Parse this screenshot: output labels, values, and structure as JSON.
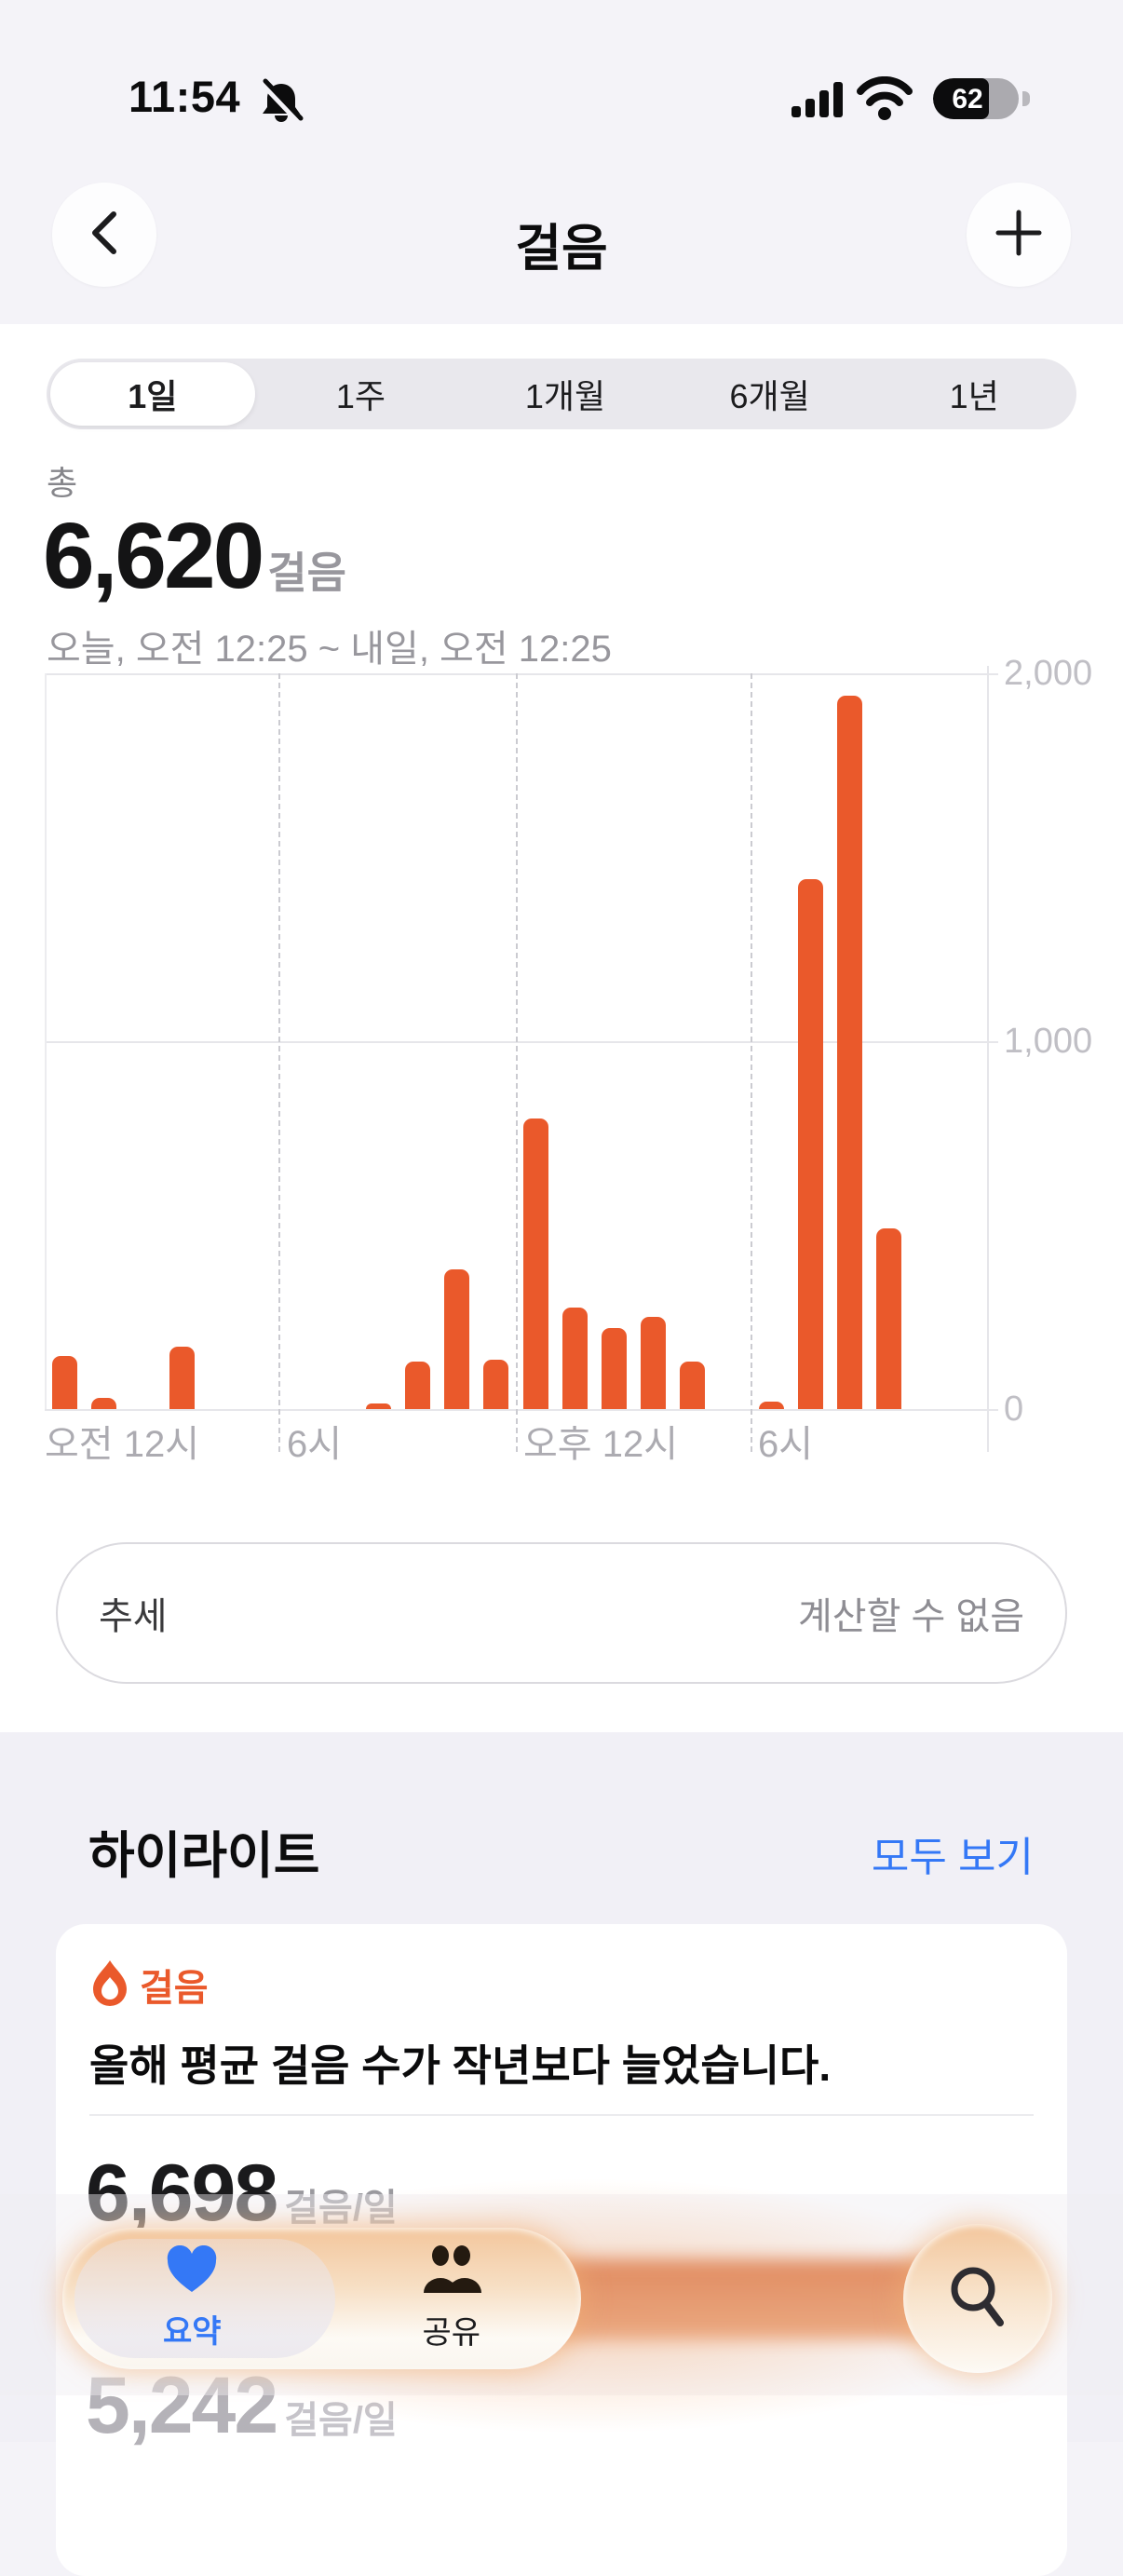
{
  "status_bar": {
    "time": "11:54",
    "battery_percent": "62",
    "icons": [
      "bell-muted-icon",
      "signal-icon",
      "wifi-icon",
      "battery-icon"
    ]
  },
  "header": {
    "title": "걸음"
  },
  "segmented": {
    "options": [
      "1일",
      "1주",
      "1개월",
      "6개월",
      "1년"
    ],
    "selected": "1일"
  },
  "summary": {
    "label": "총",
    "value": "6,620",
    "unit": "걸음",
    "range": "오늘, 오전 12:25 ~ 내일, 오전 12:25"
  },
  "chart_data": {
    "type": "bar",
    "title": "걸음 (하루, 시간별)",
    "x": [
      0,
      1,
      2,
      3,
      4,
      5,
      6,
      7,
      8,
      9,
      10,
      11,
      12,
      13,
      14,
      15,
      16,
      17,
      18,
      19,
      20,
      21,
      22,
      23
    ],
    "values": [
      145,
      30,
      0,
      170,
      0,
      0,
      0,
      0,
      15,
      130,
      380,
      135,
      790,
      275,
      220,
      250,
      130,
      0,
      20,
      1440,
      1940,
      490,
      0,
      0
    ],
    "xlabel": "",
    "ylabel": "걸음",
    "ylim": [
      0,
      2000
    ],
    "y_ticks": [
      {
        "label": "0",
        "value": 0
      },
      {
        "label": "1,000",
        "value": 1000
      },
      {
        "label": "2,000",
        "value": 2000
      }
    ],
    "x_tick_labels": [
      "오전 12시",
      "6시",
      "오후 12시",
      "6시"
    ],
    "grid": true,
    "legend": "none",
    "bar_color": "#EA592B"
  },
  "trend": {
    "label": "추세",
    "value": "계산할 수 없음"
  },
  "highlights": {
    "title": "하이라이트",
    "see_all": "모두 보기",
    "card": {
      "category": "걸음",
      "headline": "올해 평균 걸음 수가 작년보다 늘었습니다.",
      "rows": [
        {
          "value": "6,698",
          "unit": "걸음/일"
        },
        {
          "value": "5,242",
          "unit": "걸음/일"
        }
      ]
    }
  },
  "tab_bar": {
    "tabs": [
      {
        "label": "요약",
        "icon": "heart-icon",
        "selected": true
      },
      {
        "label": "공유",
        "icon": "people-icon",
        "selected": false
      }
    ],
    "search": "search-icon"
  },
  "colors": {
    "accent_orange": "#EA592B",
    "link_blue": "#3478F6",
    "grid_gray": "#E6E6EA"
  }
}
